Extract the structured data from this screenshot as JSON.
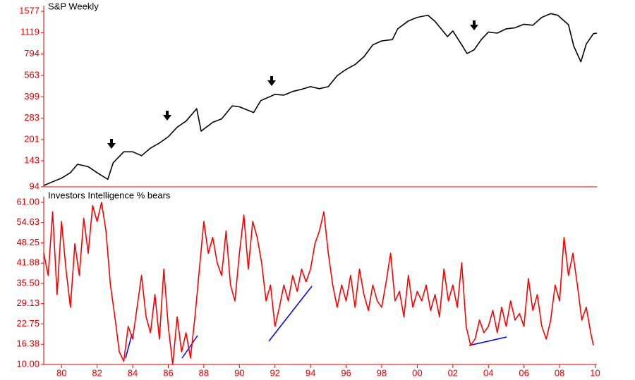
{
  "chart_data": [
    {
      "type": "line",
      "title": "S&P Weekly",
      "log": true,
      "xlim": [
        1979,
        2010.1
      ],
      "ylim": [
        94,
        1577
      ],
      "yticks": [
        94,
        143,
        201,
        283,
        399,
        563,
        794,
        1119,
        1577
      ],
      "x": [
        1979.0,
        1979.5,
        1980.0,
        1980.5,
        1980.9,
        1981.5,
        1982.0,
        1982.6,
        1982.9,
        1983.5,
        1984.0,
        1984.5,
        1985.0,
        1985.5,
        1986.0,
        1986.5,
        1987.0,
        1987.6,
        1987.85,
        1988.5,
        1989.0,
        1989.6,
        1990.0,
        1990.8,
        1991.2,
        1992.0,
        1992.5,
        1993.0,
        1993.5,
        1994.0,
        1994.5,
        1995.0,
        1995.5,
        1996.0,
        1996.5,
        1997.0,
        1997.5,
        1998.0,
        1998.6,
        1998.9,
        1999.5,
        2000.0,
        2000.6,
        2001.0,
        2001.7,
        2002.0,
        2002.5,
        2002.8,
        2003.2,
        2003.6,
        2004.0,
        2004.5,
        2005.0,
        2005.5,
        2006.0,
        2006.5,
        2007.0,
        2007.5,
        2007.9,
        2008.5,
        2008.8,
        2009.2,
        2009.5,
        2009.9,
        2010.1
      ],
      "series": [
        {
          "name": "S&P Weekly",
          "color": "#000000",
          "values": [
            96,
            102,
            108,
            118,
            135,
            130,
            118,
            106,
            138,
            165,
            165,
            155,
            175,
            190,
            210,
            245,
            270,
            330,
            230,
            265,
            280,
            345,
            340,
            310,
            375,
            415,
            410,
            435,
            450,
            470,
            455,
            470,
            560,
            620,
            670,
            760,
            920,
            980,
            1000,
            1190,
            1350,
            1430,
            1480,
            1340,
            1050,
            1150,
            920,
            800,
            850,
            1000,
            1130,
            1110,
            1190,
            1210,
            1280,
            1260,
            1430,
            1520,
            1480,
            1270,
            900,
            700,
            930,
            1100,
            1110
          ]
        }
      ]
    },
    {
      "type": "line",
      "title": "Investors Intelligence % bears",
      "xlim": [
        1979,
        2010.1
      ],
      "ylim": [
        10,
        61
      ],
      "yticks": [
        {
          "value": 10,
          "label": "10.00"
        },
        16.38,
        22.75,
        29.13,
        {
          "value": 35.5,
          "label": "35.50"
        },
        41.88,
        48.25,
        54.63,
        {
          "value": 61,
          "label": "61.00"
        }
      ],
      "xticks": [
        {
          "value": 1980,
          "label": "80"
        },
        {
          "value": 1982,
          "label": "82"
        },
        {
          "value": 1984,
          "label": "84"
        },
        {
          "value": 1986,
          "label": "86"
        },
        {
          "value": 1988,
          "label": "88"
        },
        {
          "value": 1990,
          "label": "90"
        },
        {
          "value": 1992,
          "label": "92"
        },
        {
          "value": 1994,
          "label": "94"
        },
        {
          "value": 1996,
          "label": "96"
        },
        {
          "value": 1998,
          "label": "98"
        },
        {
          "value": 2000,
          "label": "00"
        },
        {
          "value": 2002,
          "label": "02"
        },
        {
          "value": 2004,
          "label": "04"
        },
        {
          "value": 2006,
          "label": "06"
        },
        {
          "value": 2008,
          "label": "08"
        },
        {
          "value": 2010,
          "label": "10"
        }
      ],
      "x": [
        1979.0,
        1979.25,
        1979.5,
        1979.75,
        1980.0,
        1980.25,
        1980.5,
        1980.75,
        1981.0,
        1981.25,
        1981.5,
        1981.75,
        1982.0,
        1982.25,
        1982.5,
        1982.75,
        1983.0,
        1983.25,
        1983.5,
        1983.75,
        1984.0,
        1984.25,
        1984.5,
        1984.75,
        1985.0,
        1985.25,
        1985.5,
        1985.75,
        1986.0,
        1986.25,
        1986.5,
        1986.75,
        1987.0,
        1987.25,
        1987.5,
        1987.75,
        1988.0,
        1988.25,
        1988.5,
        1988.75,
        1989.0,
        1989.25,
        1989.5,
        1989.75,
        1990.0,
        1990.25,
        1990.5,
        1990.75,
        1991.0,
        1991.25,
        1991.5,
        1991.75,
        1992.0,
        1992.25,
        1992.5,
        1992.75,
        1993.0,
        1993.25,
        1993.5,
        1993.75,
        1994.0,
        1994.25,
        1994.5,
        1994.75,
        1995.0,
        1995.25,
        1995.5,
        1995.75,
        1996.0,
        1996.25,
        1996.5,
        1996.75,
        1997.0,
        1997.25,
        1997.5,
        1997.75,
        1998.0,
        1998.25,
        1998.5,
        1998.75,
        1999.0,
        1999.25,
        1999.5,
        1999.75,
        2000.0,
        2000.25,
        2000.5,
        2000.75,
        2001.0,
        2001.25,
        2001.5,
        2001.75,
        2002.0,
        2002.25,
        2002.5,
        2002.75,
        2003.0,
        2003.25,
        2003.5,
        2003.75,
        2004.0,
        2004.25,
        2004.5,
        2004.75,
        2005.0,
        2005.25,
        2005.5,
        2005.75,
        2006.0,
        2006.25,
        2006.5,
        2006.75,
        2007.0,
        2007.25,
        2007.5,
        2007.75,
        2008.0,
        2008.25,
        2008.5,
        2008.75,
        2009.0,
        2009.25,
        2009.5,
        2009.75,
        2009.9
      ],
      "series": [
        {
          "name": "Investors Intelligence % bears",
          "color": "#ff0000",
          "values": [
            45,
            38,
            58,
            32,
            55,
            40,
            28,
            48,
            38,
            56,
            45,
            60,
            55,
            61,
            52,
            35,
            25,
            14,
            11,
            22,
            18,
            28,
            38,
            25,
            20,
            32,
            18,
            40,
            22,
            10,
            25,
            14,
            20,
            12,
            25,
            40,
            55,
            45,
            50,
            42,
            38,
            52,
            35,
            30,
            45,
            57,
            40,
            55,
            50,
            42,
            30,
            35,
            22,
            28,
            35,
            30,
            38,
            33,
            40,
            36,
            40,
            48,
            52,
            58,
            45,
            35,
            28,
            35,
            30,
            38,
            28,
            40,
            32,
            27,
            35,
            30,
            28,
            36,
            45,
            30,
            33,
            25,
            38,
            28,
            33,
            30,
            35,
            27,
            32,
            25,
            40,
            30,
            35,
            28,
            42,
            22,
            16,
            18,
            24,
            20,
            22,
            27,
            20,
            28,
            22,
            30,
            24,
            26,
            22,
            37,
            27,
            32,
            22,
            18,
            24,
            35,
            30,
            50,
            38,
            45,
            35,
            24,
            28,
            20,
            16
          ]
        }
      ]
    }
  ]
}
